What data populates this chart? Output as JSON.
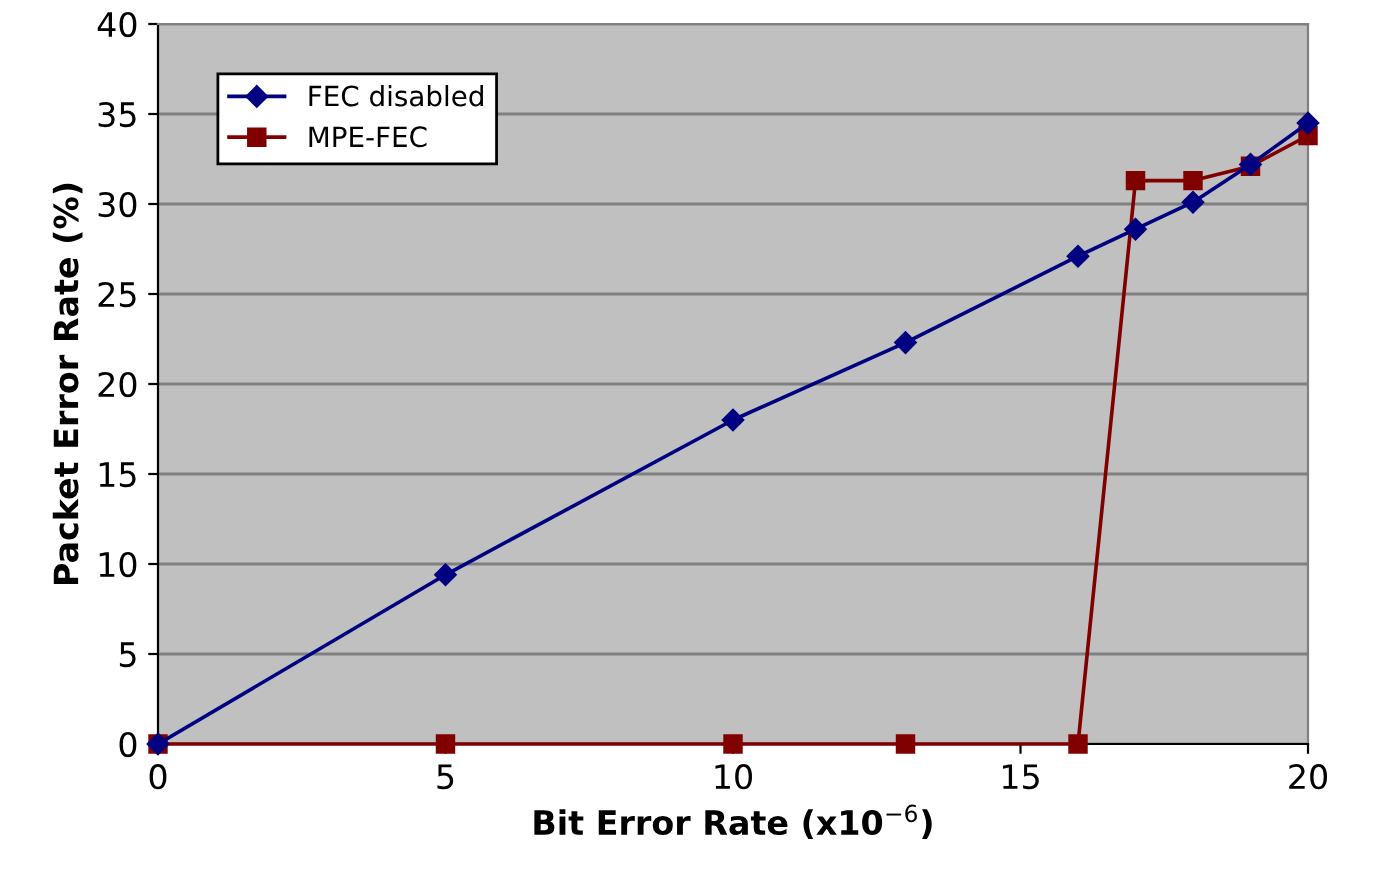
{
  "chart_data": {
    "type": "line",
    "xlabel": "Bit Error Rate (x10$^{−6}$)",
    "ylabel": "Packet Error Rate (%)",
    "x": [
      0,
      5,
      10,
      13,
      16,
      17,
      18,
      19,
      20
    ],
    "series": [
      {
        "name": "FEC disabled",
        "color": "#000080",
        "marker": "diamond",
        "values": [
          0,
          9.4,
          18,
          22.3,
          27.1,
          28.6,
          30.1,
          32.2,
          34.5
        ]
      },
      {
        "name": "MPE-FEC",
        "color": "#800000",
        "marker": "square",
        "values": [
          0,
          0,
          0,
          0,
          0,
          31.3,
          31.3,
          32.1,
          33.8
        ]
      }
    ],
    "xlim": [
      0,
      20
    ],
    "xticks": [
      0,
      5,
      10,
      15,
      20
    ],
    "ylim": [
      0,
      40
    ],
    "yticks": [
      0,
      5,
      10,
      15,
      20,
      25,
      30,
      35,
      40
    ],
    "grid": "y",
    "legend": "top left",
    "line_style": "solid"
  }
}
